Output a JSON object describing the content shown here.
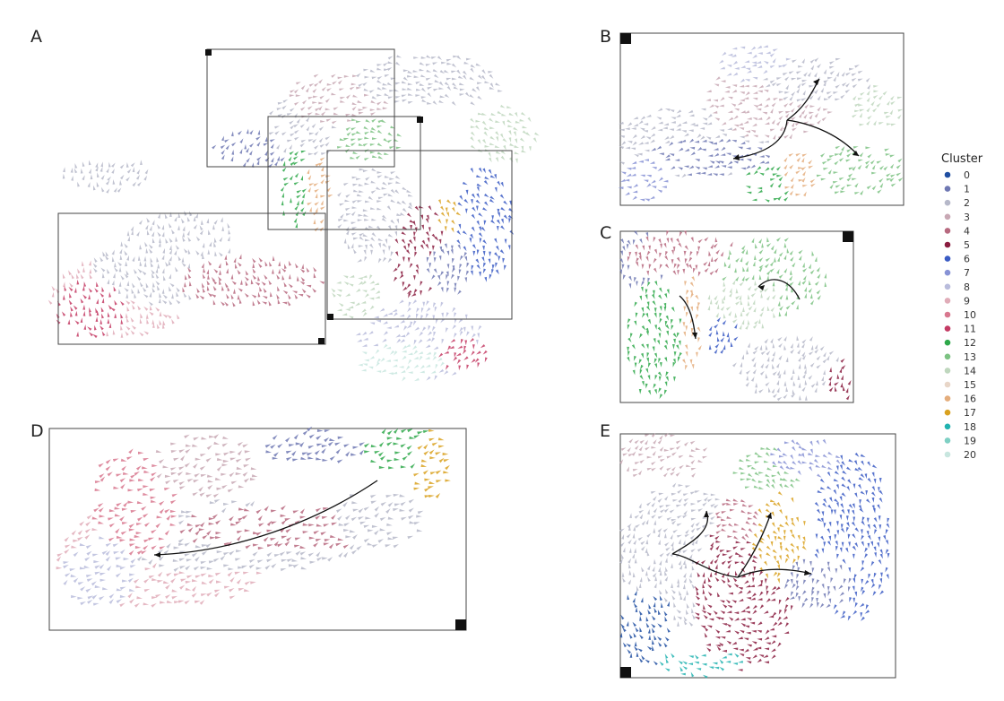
{
  "figure": {
    "panels": [
      "A",
      "B",
      "C",
      "D",
      "E"
    ]
  },
  "legend": {
    "title": "Cluster",
    "items": [
      {
        "label": "0",
        "color": "#1f4ea1"
      },
      {
        "label": "1",
        "color": "#6f78b3"
      },
      {
        "label": "2",
        "color": "#b6b8c9"
      },
      {
        "label": "3",
        "color": "#c8a8b4"
      },
      {
        "label": "4",
        "color": "#b7697f"
      },
      {
        "label": "5",
        "color": "#8a1c3f"
      },
      {
        "label": "6",
        "color": "#3a5bc4"
      },
      {
        "label": "7",
        "color": "#8792d5"
      },
      {
        "label": "8",
        "color": "#b9bcdc"
      },
      {
        "label": "9",
        "color": "#e0acb8"
      },
      {
        "label": "10",
        "color": "#d8778e"
      },
      {
        "label": "11",
        "color": "#c43b64"
      },
      {
        "label": "12",
        "color": "#2ea84a"
      },
      {
        "label": "13",
        "color": "#7cc282"
      },
      {
        "label": "14",
        "color": "#bfd7be"
      },
      {
        "label": "15",
        "color": "#e8d6c8"
      },
      {
        "label": "16",
        "color": "#e4ad7c"
      },
      {
        "label": "17",
        "color": "#d9a11f"
      },
      {
        "label": "18",
        "color": "#21b3b0"
      },
      {
        "label": "19",
        "color": "#7fd0c4"
      },
      {
        "label": "20",
        "color": "#c8e6df"
      }
    ]
  },
  "chart_data": {
    "type": "scatter",
    "title": "",
    "xlabel": "",
    "ylabel": "",
    "grid": false,
    "legend_position": "right",
    "panels": [
      "A",
      "B",
      "C",
      "D",
      "E"
    ],
    "series": [
      {
        "name": "0"
      },
      {
        "name": "1"
      },
      {
        "name": "2"
      },
      {
        "name": "3"
      },
      {
        "name": "4"
      },
      {
        "name": "5"
      },
      {
        "name": "6"
      },
      {
        "name": "7"
      },
      {
        "name": "8"
      },
      {
        "name": "9"
      },
      {
        "name": "10"
      },
      {
        "name": "11"
      },
      {
        "name": "12"
      },
      {
        "name": "13"
      },
      {
        "name": "14"
      },
      {
        "name": "15"
      },
      {
        "name": "16"
      },
      {
        "name": "17"
      },
      {
        "name": "18"
      },
      {
        "name": "19"
      },
      {
        "name": "20"
      }
    ]
  }
}
